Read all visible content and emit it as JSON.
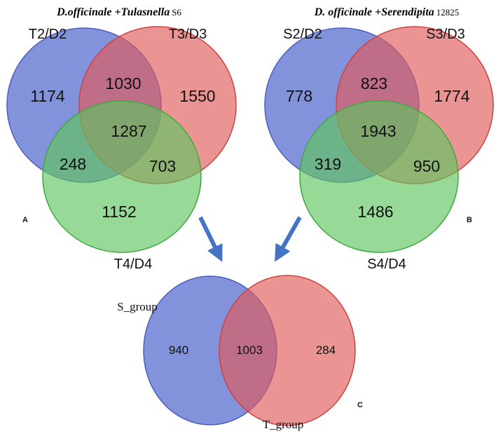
{
  "panel_a": {
    "title_species": "D.officinale",
    "title_plus": "+",
    "title_fungus": "Tulasnella",
    "title_strain": "S6",
    "panel_label": "A",
    "sets": {
      "top_left": "T2/D2",
      "top_right": "T3/D3",
      "bottom": "T4/D4"
    },
    "regions": {
      "only_left": "1174",
      "left_right": "1030",
      "only_right": "1550",
      "all_three": "1287",
      "left_bottom": "248",
      "right_bottom": "703",
      "only_bottom": "1152"
    }
  },
  "panel_b": {
    "title_species": "D. officinale",
    "title_plus": "+",
    "title_fungus": "Serendipita",
    "title_strain": "12825",
    "panel_label": "B",
    "sets": {
      "top_left": "S2/D2",
      "top_right": "S3/D3",
      "bottom": "S4/D4"
    },
    "regions": {
      "only_left": "778",
      "left_right": "823",
      "only_right": "1774",
      "all_three": "1943",
      "left_bottom": "319",
      "right_bottom": "950",
      "only_bottom": "1486"
    }
  },
  "panel_c": {
    "panel_label": "C",
    "sets": {
      "left": "S_group",
      "right": "T_group"
    },
    "regions": {
      "only_left": "940",
      "both": "1003",
      "only_right": "284"
    }
  },
  "colors": {
    "blue": "#5a6fcf",
    "red": "#e05a5a",
    "green": "#5fc45f",
    "arrow": "#4472c4"
  }
}
